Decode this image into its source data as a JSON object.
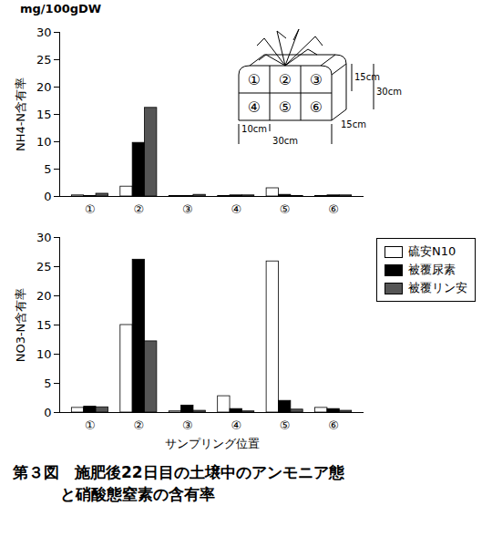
{
  "chart_data": [
    {
      "type": "bar",
      "annotations": [
        "mg/100gDW"
      ],
      "y_label": "NH4-N含有率",
      "categories": [
        "①",
        "②",
        "③",
        "④",
        "⑤",
        "⑥"
      ],
      "series": [
        {
          "name": "硫安N10",
          "color": "#ffffff",
          "values": [
            0.2,
            1.8,
            0.1,
            0.1,
            1.5,
            0.1
          ]
        },
        {
          "name": "被覆尿素",
          "color": "#000000",
          "values": [
            0.1,
            9.8,
            0.1,
            0.2,
            0.3,
            0.2
          ]
        },
        {
          "name": "被覆リン安",
          "color": "#555555",
          "values": [
            0.5,
            16.2,
            0.3,
            0.2,
            0.1,
            0.2
          ]
        }
      ],
      "ylim": [
        0,
        30
      ],
      "yticks": [
        0,
        5,
        10,
        15,
        20,
        25,
        30
      ],
      "grid": false
    },
    {
      "type": "bar",
      "y_label": "NO3-N含有率",
      "x_label": "サンプリング位置",
      "categories": [
        "①",
        "②",
        "③",
        "④",
        "⑤",
        "⑥"
      ],
      "series": [
        {
          "name": "硫安N10",
          "color": "#ffffff",
          "values": [
            0.8,
            15.0,
            0.2,
            2.8,
            25.9,
            0.8
          ]
        },
        {
          "name": "被覆尿素",
          "color": "#000000",
          "values": [
            1.0,
            26.2,
            1.2,
            0.6,
            2.0,
            0.6
          ]
        },
        {
          "name": "被覆リン安",
          "color": "#555555",
          "values": [
            0.9,
            12.2,
            0.3,
            0.2,
            0.5,
            0.3
          ]
        }
      ],
      "ylim": [
        0,
        30
      ],
      "yticks": [
        0,
        5,
        10,
        15,
        20,
        25,
        30
      ],
      "grid": false,
      "legend": "right"
    }
  ],
  "caption": [
    "第３図　施肥後22日目の土壌中のアンモニア態",
    "と硝酸態窒素の含有率"
  ],
  "diagram": {
    "cells": [
      "①",
      "②",
      "③",
      "④",
      "⑤",
      "⑥"
    ],
    "dimensions": {
      "cell_width": "10cm",
      "width": "30cm",
      "cell_height": "15cm",
      "height": "30cm",
      "depth": "15cm"
    }
  }
}
